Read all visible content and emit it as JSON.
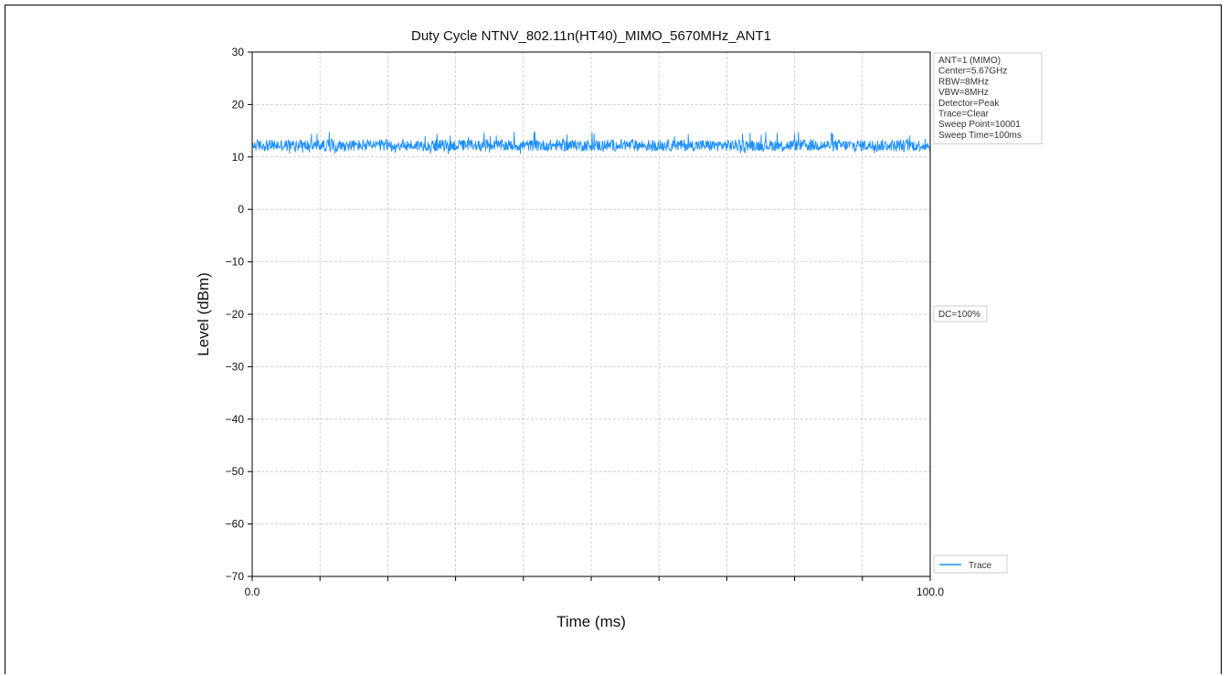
{
  "chart_data": {
    "type": "line",
    "title": "Duty Cycle NTNV_802.11n(HT40)_MIMO_5670MHz_ANT1",
    "xlabel": "Time (ms)",
    "ylabel": "Level (dBm)",
    "xlim": [
      0.0,
      100.0
    ],
    "ylim": [
      -70,
      30
    ],
    "x_tick_labels": [
      "0.0",
      "100.0"
    ],
    "y_ticks": [
      30,
      20,
      10,
      0,
      -10,
      -20,
      -30,
      -40,
      -50,
      -60,
      -70
    ],
    "y_tick_labels": [
      "30",
      "20",
      "10",
      "0",
      "−10",
      "−20",
      "−30",
      "−40",
      "−50",
      "−60",
      "−70"
    ],
    "x_grid_divisions": 10,
    "grid": true,
    "series": [
      {
        "name": "Trace",
        "color": "#1f8fff",
        "x_start": 0.0,
        "x_end": 100.0,
        "level_min": 10.5,
        "level_max": 15.0,
        "level_typical": 12.2
      }
    ],
    "info_lines": [
      "ANT=1 (MIMO)",
      "Center=5.67GHz",
      "RBW=8MHz",
      "VBW=8MHz",
      "Detector=Peak",
      "Trace=Clear",
      "Sweep Point=10001",
      "Sweep Time=100ms"
    ],
    "annotation": "DC=100%",
    "legend": {
      "position": "bottom-right, outside plot",
      "label": "Trace"
    }
  }
}
